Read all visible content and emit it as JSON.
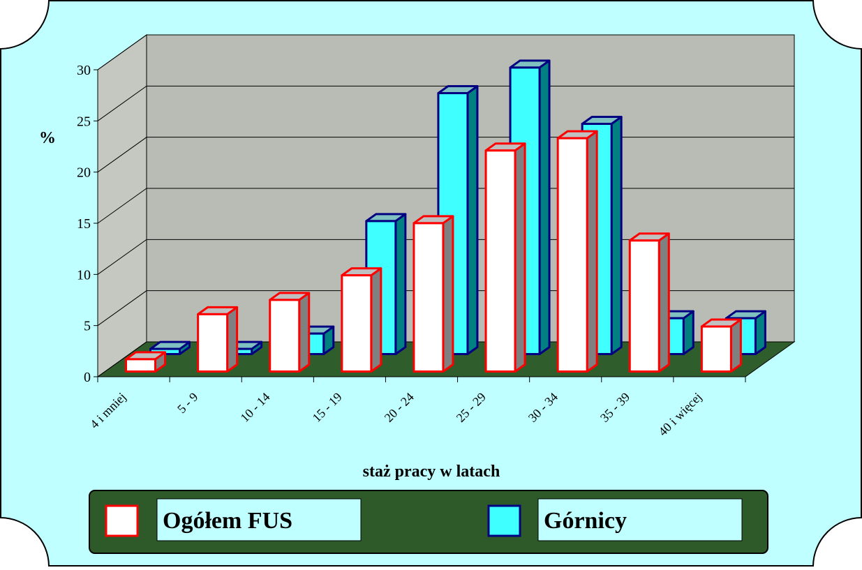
{
  "chart_data": {
    "type": "bar3d",
    "y_label": "%",
    "x_label": "staż pracy w latach",
    "categories": [
      "4 i mniej",
      "5 - 9",
      "10 - 14",
      "15 - 19",
      "20 - 24",
      "25 - 29",
      "30 - 34",
      "35 - 39",
      "40 i więcej"
    ],
    "series": [
      {
        "name": "Ogółem FUS",
        "color": "#ffffff",
        "edge": "#ff0000",
        "values": [
          1.2,
          5.6,
          7,
          9.4,
          14.5,
          21.6,
          22.8,
          12.8,
          4.4
        ]
      },
      {
        "name": "Górnicy",
        "color": "#40ffff",
        "edge": "#000080",
        "values": [
          0.5,
          0.5,
          2,
          13,
          25.5,
          28,
          22.5,
          3.5,
          3.5
        ]
      }
    ],
    "ylim": [
      0,
      30
    ],
    "yticks": [
      0,
      5,
      10,
      15,
      20,
      25,
      30
    ],
    "grid": true
  }
}
